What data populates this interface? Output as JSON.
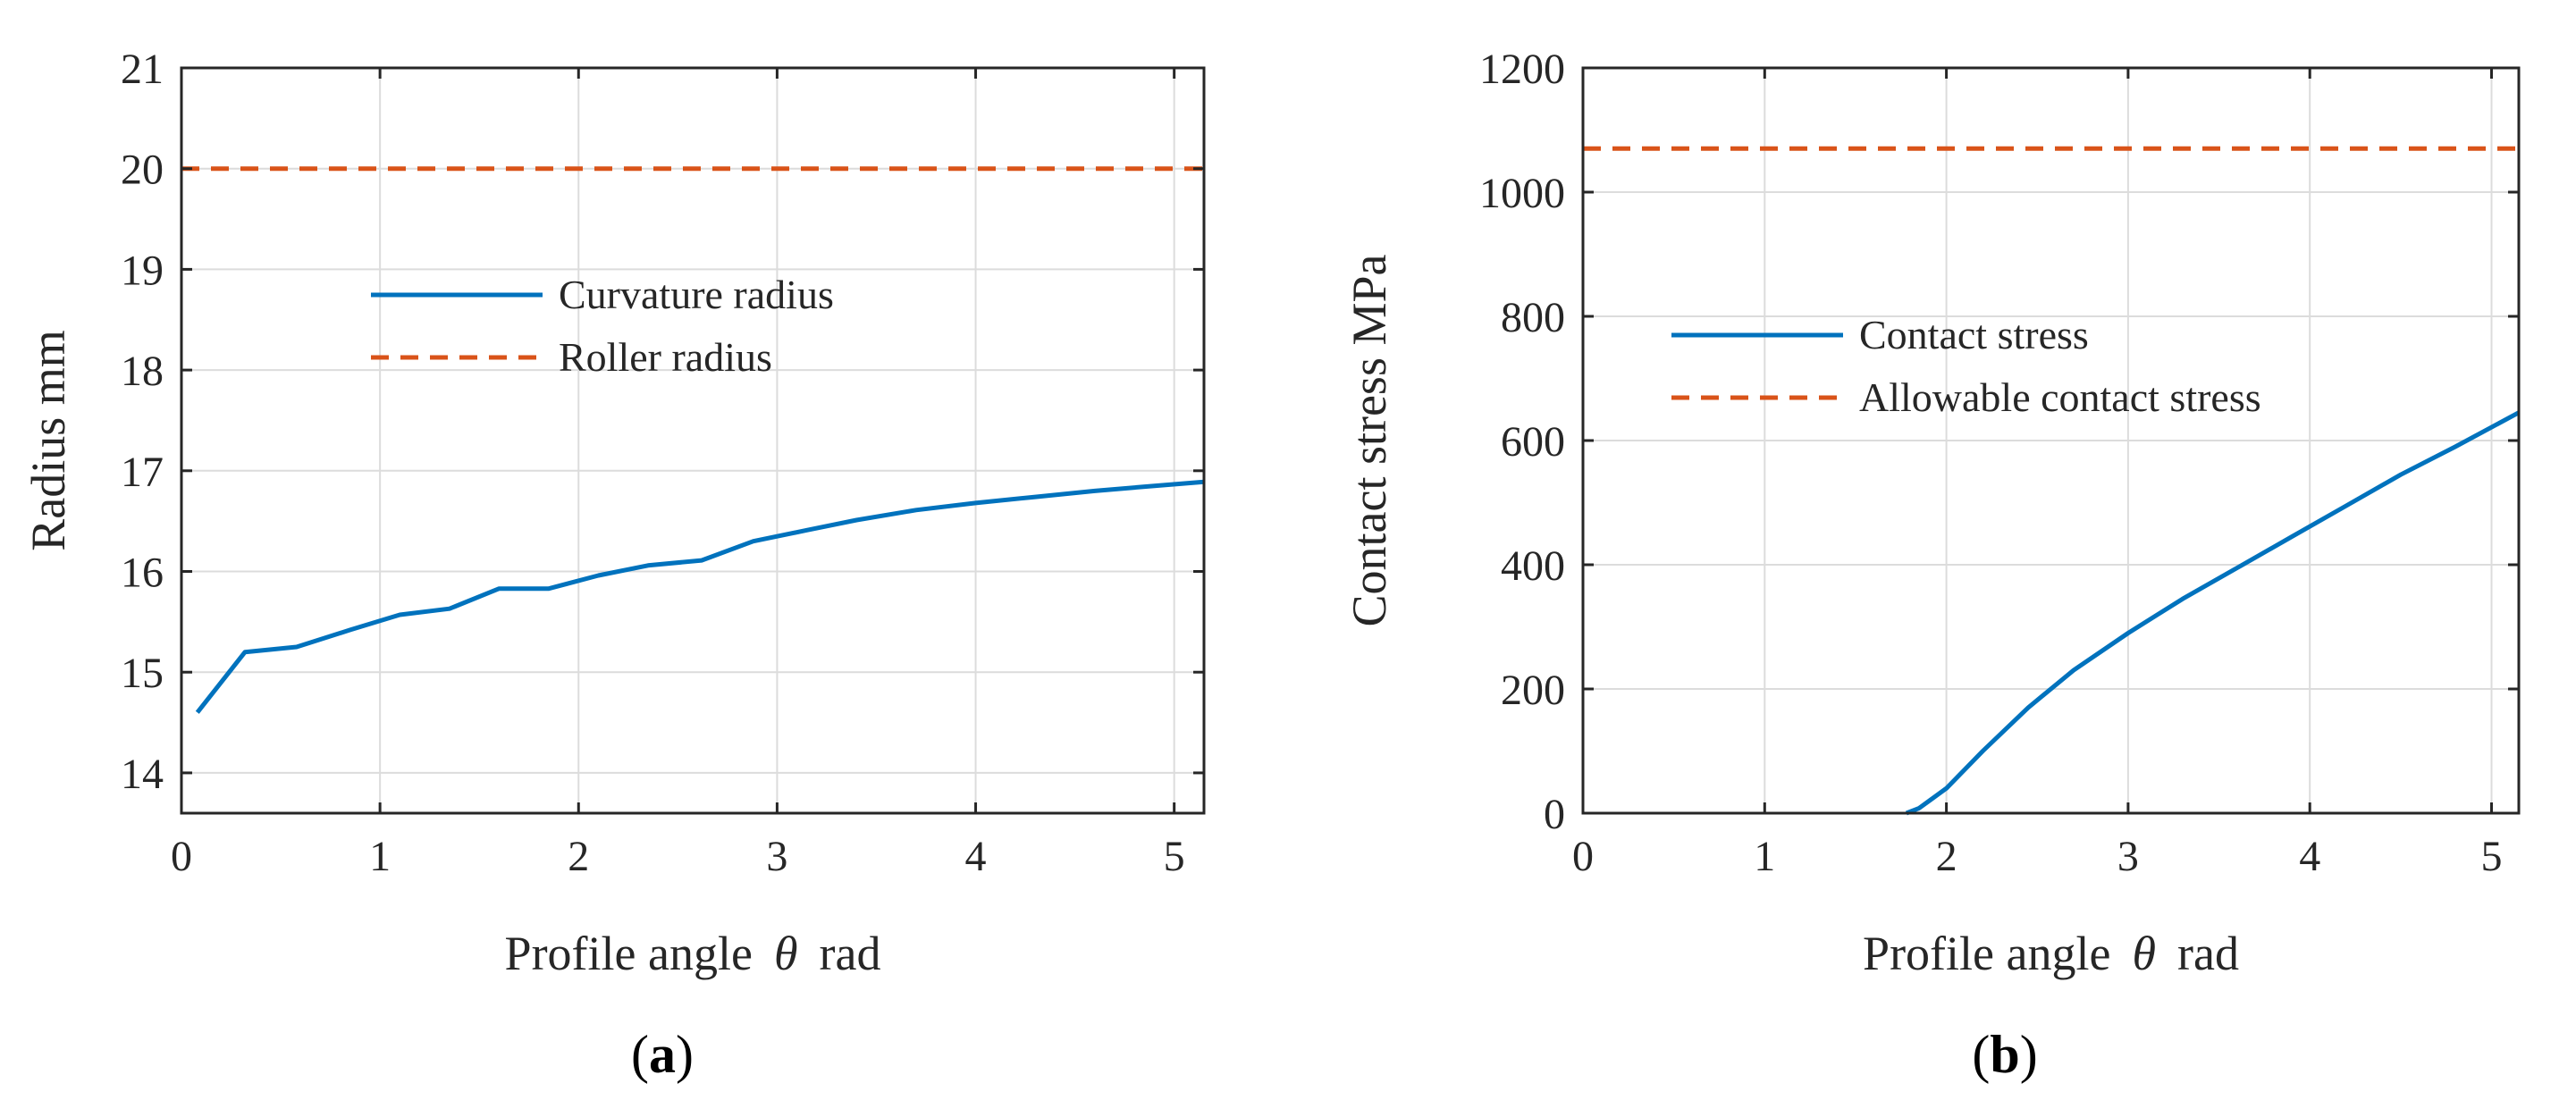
{
  "colors": {
    "series_blue": "#0072BD",
    "series_orange": "#D95319",
    "grid": "#dcdcdc",
    "axis": "#262626"
  },
  "panels": [
    {
      "open": "(",
      "letter": "a",
      "close": ")"
    },
    {
      "open": "(",
      "letter": "b",
      "close": ")"
    }
  ],
  "chart_data": [
    {
      "type": "line",
      "xlabel_pre": "Profile angle",
      "xlabel_symbol": "θ",
      "xlabel_post": "rad",
      "ylabel": "Radius  mm",
      "xlim": [
        0,
        5.15
      ],
      "ylim": [
        13.6,
        21
      ],
      "xticks": [
        0,
        1,
        2,
        3,
        4,
        5
      ],
      "yticks": [
        14,
        15,
        16,
        17,
        18,
        19,
        20,
        21
      ],
      "grid": true,
      "legend_position": "center",
      "series": [
        {
          "name": "Curvature radius",
          "style": "solid",
          "color": "#0072BD",
          "x": [
            0.08,
            0.32,
            0.58,
            0.85,
            1.1,
            1.35,
            1.6,
            1.85,
            2.1,
            2.35,
            2.62,
            2.88,
            3.15,
            3.4,
            3.7,
            4.0,
            4.3,
            4.6,
            4.9,
            5.15
          ],
          "y": [
            14.6,
            15.2,
            15.25,
            15.42,
            15.57,
            15.63,
            15.83,
            15.83,
            15.96,
            16.06,
            16.11,
            16.3,
            16.41,
            16.51,
            16.61,
            16.68,
            16.74,
            16.8,
            16.85,
            16.89
          ]
        },
        {
          "name": "Roller radius",
          "style": "dashed",
          "color": "#D95319",
          "x": [
            0,
            5.15
          ],
          "y": [
            20,
            20
          ]
        }
      ]
    },
    {
      "type": "line",
      "xlabel_pre": "Profile angle",
      "xlabel_symbol": "θ",
      "xlabel_post": "rad",
      "ylabel": "Contact stress MPa",
      "xlim": [
        0,
        5.15
      ],
      "ylim": [
        0,
        1200
      ],
      "xticks": [
        0,
        1,
        2,
        3,
        4,
        5
      ],
      "yticks": [
        0,
        200,
        400,
        600,
        800,
        1000,
        1200
      ],
      "grid": true,
      "legend_position": "center",
      "series": [
        {
          "name": "Contact stress",
          "style": "solid",
          "color": "#0072BD",
          "x": [
            1.78,
            1.85,
            2.0,
            2.2,
            2.45,
            2.7,
            3.0,
            3.3,
            3.6,
            3.9,
            4.2,
            4.5,
            4.8,
            5.15
          ],
          "y": [
            0,
            8,
            40,
            100,
            170,
            230,
            290,
            345,
            395,
            445,
            495,
            545,
            590,
            645
          ]
        },
        {
          "name": "Allowable contact stress",
          "style": "dashed",
          "color": "#D95319",
          "x": [
            0,
            5.15
          ],
          "y": [
            1070,
            1070
          ]
        }
      ]
    }
  ]
}
